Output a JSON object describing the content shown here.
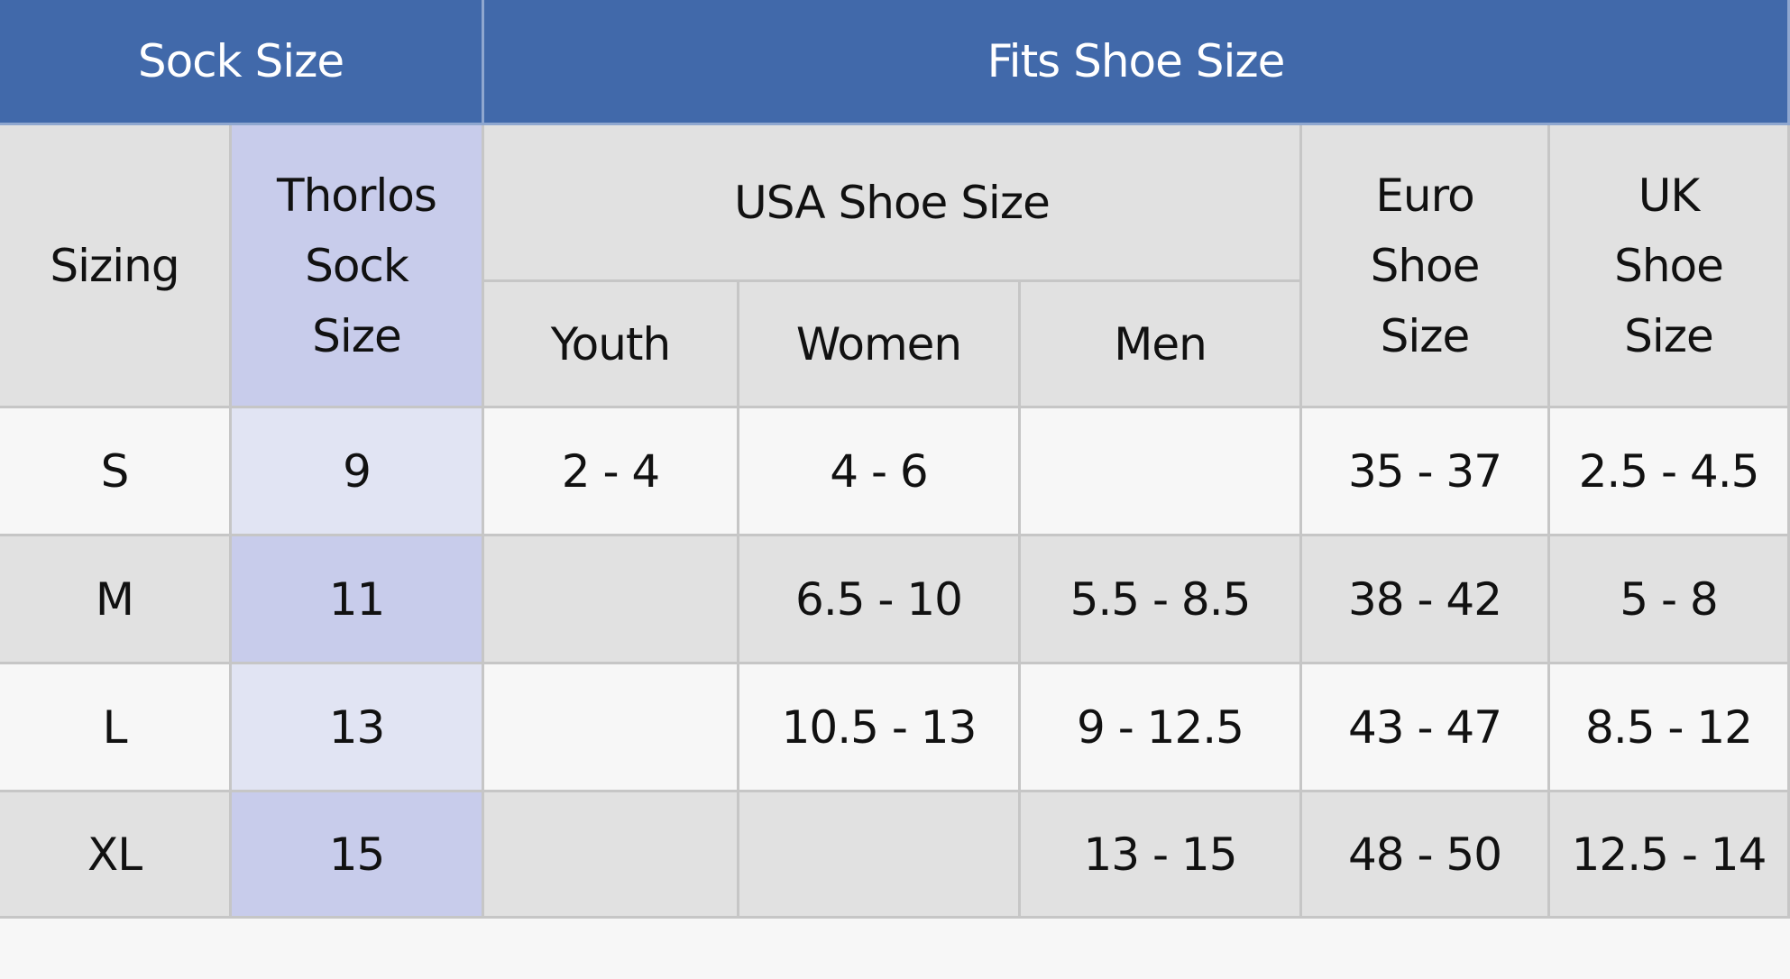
{
  "header": [
    "Sock Size",
    "Fits Shoe Size"
  ],
  "subheader": {
    "sizing": "Sizing",
    "thorlos": "Thorlos\nSock\nSize",
    "usa": "USA Shoe Size",
    "youth": "Youth",
    "women": "Women",
    "men": "Men",
    "euro": "Euro\nShoe\nSize",
    "uk": "UK\nShoe\nSize"
  },
  "table": {
    "rows": [
      [
        "S",
        "9",
        "2 - 4",
        "4 - 6",
        null,
        "35 - 37",
        "2.5 - 4.5"
      ],
      [
        "M",
        "11",
        null,
        "6.5 - 10",
        "5.5 - 8.5",
        "38 - 42",
        "5 - 8"
      ],
      [
        "L",
        "13",
        null,
        "10.5 - 13",
        "9 - 12.5",
        "43 - 47",
        "8.5 - 12"
      ],
      [
        "XL",
        "15",
        null,
        null,
        "13 - 15",
        "48 - 50",
        "12.5 - 14"
      ]
    ]
  }
}
